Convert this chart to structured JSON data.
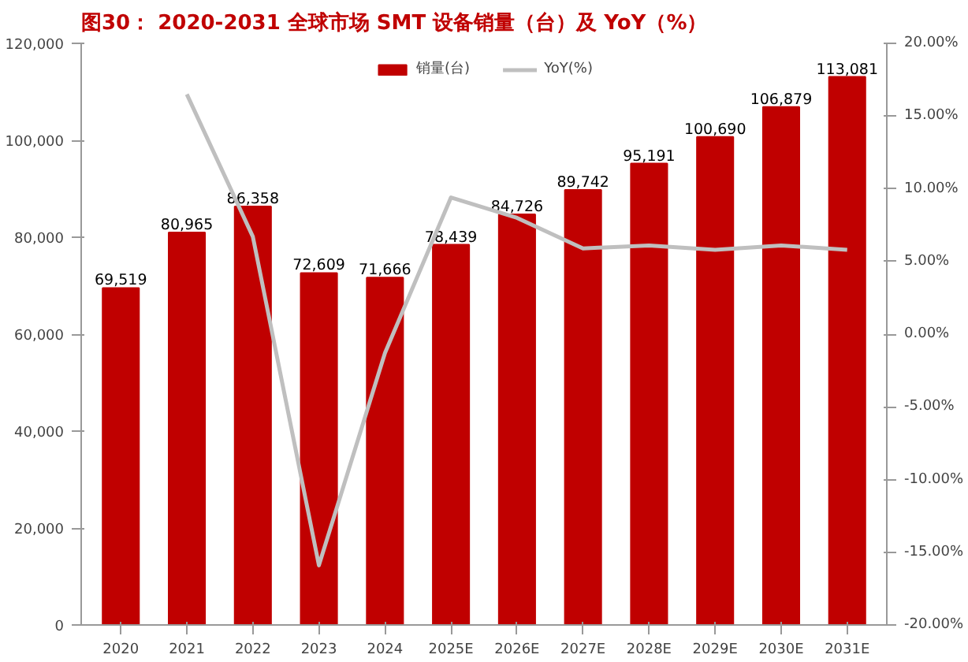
{
  "chart_data": {
    "type": "bar",
    "title": "图30：  2020-2031 全球市场 SMT 设备销量（台）及 YoY（%）",
    "categories": [
      "2020",
      "2021",
      "2022",
      "2023",
      "2024",
      "2025E",
      "2026E",
      "2027E",
      "2028E",
      "2029E",
      "2030E",
      "2031E"
    ],
    "series": [
      {
        "name": "销量(台)",
        "color": "#c00000",
        "values": [
          69519,
          80965,
          86358,
          72609,
          71666,
          78439,
          84726,
          89742,
          95191,
          100690,
          106879,
          113081
        ],
        "value_labels": [
          "69,519",
          "80,965",
          "86,358",
          "72,609",
          "71,666",
          "78,439",
          "84,726",
          "89,742",
          "95,191",
          "100,690",
          "106,879",
          "113,081"
        ]
      },
      {
        "name": "YoY(%)",
        "type": "line",
        "axis": "y2",
        "color": "#bfbfbf",
        "values": [
          null,
          16.5,
          6.7,
          -15.9,
          -1.3,
          9.4,
          8.0,
          5.9,
          6.1,
          5.8,
          6.1,
          5.8
        ]
      }
    ],
    "ylim": [
      0,
      120000
    ],
    "yticks": [
      {
        "value": 0,
        "label": "0"
      },
      {
        "value": 20000,
        "label": "20,000"
      },
      {
        "value": 40000,
        "label": "40,000"
      },
      {
        "value": 60000,
        "label": "60,000"
      },
      {
        "value": 80000,
        "label": "80,000"
      },
      {
        "value": 100000,
        "label": "100,000"
      },
      {
        "value": 120000,
        "label": "120,000"
      }
    ],
    "y2lim": [
      -20,
      20
    ],
    "y2ticks": [
      {
        "value": -20,
        "label": "-20.00%"
      },
      {
        "value": -15,
        "label": "-15.00%"
      },
      {
        "value": -10,
        "label": "-10.00%"
      },
      {
        "value": -5,
        "label": "-5.00%"
      },
      {
        "value": 0,
        "label": "0.00%"
      },
      {
        "value": 5,
        "label": "5.00%"
      },
      {
        "value": 10,
        "label": "10.00%"
      },
      {
        "value": 15,
        "label": "15.00%"
      },
      {
        "value": 20,
        "label": "20.00%"
      }
    ],
    "legend": "top",
    "grid": false,
    "line_style": "solid",
    "marker": "none"
  }
}
